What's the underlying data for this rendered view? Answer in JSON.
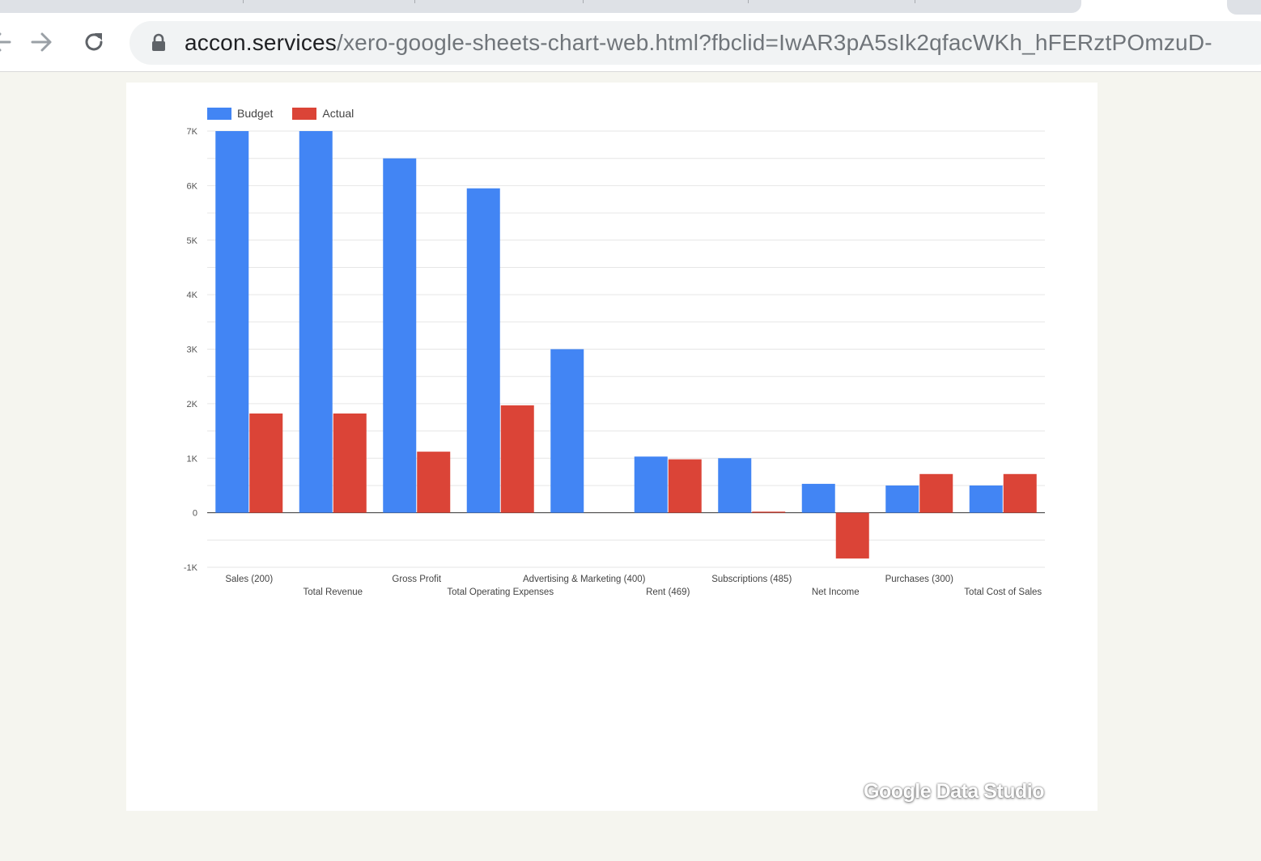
{
  "browser": {
    "url_host": "accon.services",
    "url_path": "/xero-google-sheets-chart-web.html?fbclid=IwAR3pA5sIk2qfacWKh_hFERztPOmzuD-",
    "icons": [
      "back-arrow-icon",
      "forward-arrow-icon",
      "reload-icon",
      "lock-icon"
    ]
  },
  "legend": {
    "budget_label": "Budget",
    "actual_label": "Actual"
  },
  "watermark": "Google Data Studio",
  "chart_data": {
    "type": "bar",
    "categories": [
      "Sales (200)",
      "Total Revenue",
      "Gross Profit",
      "Total Operating Expenses",
      "Advertising & Marketing (400)",
      "Rent (469)",
      "Subscriptions (485)",
      "Net Income",
      "Purchases (300)",
      "Total Cost of Sales"
    ],
    "series": [
      {
        "name": "Budget",
        "color": "#4285f4",
        "values": [
          7000,
          7000,
          6500,
          5950,
          3000,
          1030,
          1000,
          530,
          500,
          500
        ]
      },
      {
        "name": "Actual",
        "color": "#db4437",
        "values": [
          1820,
          1820,
          1120,
          1970,
          0,
          980,
          20,
          -840,
          710,
          710
        ]
      }
    ],
    "yticks": [
      7000,
      6000,
      5000,
      4000,
      3000,
      2000,
      1000,
      0,
      -1000
    ],
    "ytick_labels": [
      "7K",
      "6K",
      "5K",
      "4K",
      "3K",
      "2K",
      "1K",
      "0",
      "-1K"
    ],
    "ylim": [
      -1000,
      7000
    ],
    "grid": true,
    "legend_position": "top-left",
    "title": "",
    "xlabel": "",
    "ylabel": ""
  }
}
